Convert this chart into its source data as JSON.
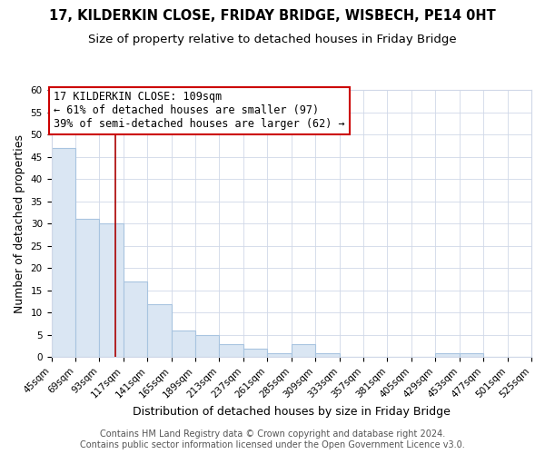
{
  "title": "17, KILDERKIN CLOSE, FRIDAY BRIDGE, WISBECH, PE14 0HT",
  "subtitle": "Size of property relative to detached houses in Friday Bridge",
  "xlabel": "Distribution of detached houses by size in Friday Bridge",
  "ylabel": "Number of detached properties",
  "footer_line1": "Contains HM Land Registry data © Crown copyright and database right 2024.",
  "footer_line2": "Contains public sector information licensed under the Open Government Licence v3.0.",
  "bins": [
    45,
    69,
    93,
    117,
    141,
    165,
    189,
    213,
    237,
    261,
    285,
    309,
    333,
    357,
    381,
    405,
    429,
    453,
    477,
    501,
    525
  ],
  "bin_labels": [
    "45sqm",
    "69sqm",
    "93sqm",
    "117sqm",
    "141sqm",
    "165sqm",
    "189sqm",
    "213sqm",
    "237sqm",
    "261sqm",
    "285sqm",
    "309sqm",
    "333sqm",
    "357sqm",
    "381sqm",
    "405sqm",
    "429sqm",
    "453sqm",
    "477sqm",
    "501sqm",
    "525sqm"
  ],
  "counts": [
    47,
    31,
    30,
    17,
    12,
    6,
    5,
    3,
    2,
    1,
    3,
    1,
    0,
    0,
    0,
    0,
    1,
    1,
    0,
    0
  ],
  "bar_color": "#dae6f3",
  "bar_edge_color": "#a8c4e0",
  "bg_color": "#ffffff",
  "grid_color": "#d0d8e8",
  "red_line_x": 109,
  "annotation_text_line1": "17 KILDERKIN CLOSE: 109sqm",
  "annotation_text_line2": "← 61% of detached houses are smaller (97)",
  "annotation_text_line3": "39% of semi-detached houses are larger (62) →",
  "annotation_box_color": "#ffffff",
  "annotation_box_edge_color": "#cc0000",
  "ylim": [
    0,
    60
  ],
  "yticks": [
    0,
    5,
    10,
    15,
    20,
    25,
    30,
    35,
    40,
    45,
    50,
    55,
    60
  ],
  "title_fontsize": 10.5,
  "subtitle_fontsize": 9.5,
  "axis_label_fontsize": 9,
  "tick_fontsize": 7.5,
  "annotation_fontsize": 8.5,
  "footer_fontsize": 7
}
